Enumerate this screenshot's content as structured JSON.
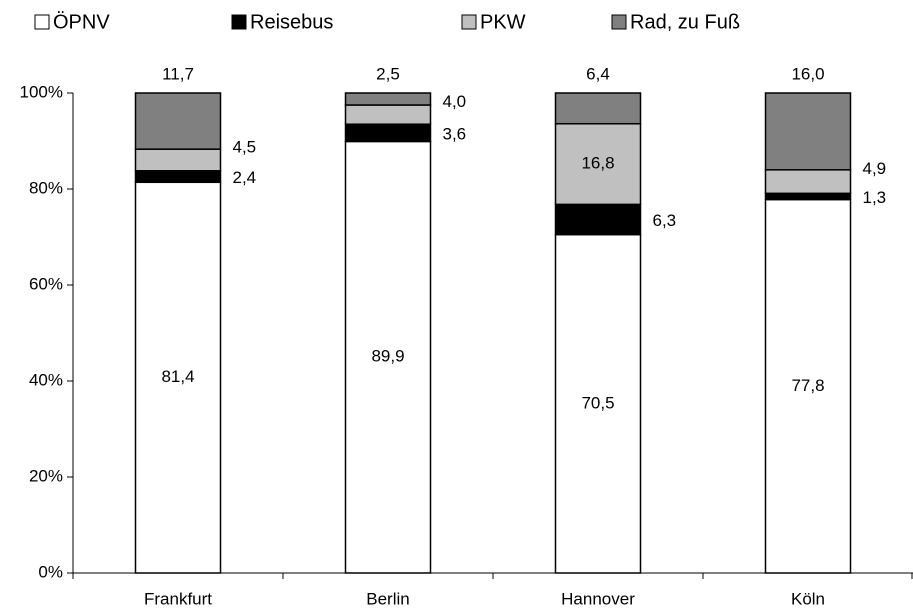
{
  "chart_data": {
    "type": "stacked_bar",
    "categories": [
      "Frankfurt",
      "Berlin",
      "Hannover",
      "Köln"
    ],
    "series": [
      {
        "name": "ÖPNV",
        "color": "#ffffff",
        "values": [
          81.4,
          89.9,
          70.5,
          77.8
        ],
        "value_labels": [
          "81,4",
          "89,9",
          "70,5",
          "77,8"
        ]
      },
      {
        "name": "Reisebus",
        "color": "#000000",
        "values": [
          2.4,
          3.6,
          6.3,
          1.3
        ],
        "value_labels": [
          "2,4",
          "3,6",
          "6,3",
          "1,3"
        ]
      },
      {
        "name": "PKW",
        "color": "#c0c0c0",
        "values": [
          4.5,
          4.0,
          16.8,
          4.9
        ],
        "value_labels": [
          "4,5",
          "4,0",
          "16,8",
          "4,9"
        ]
      },
      {
        "name": "Rad, zu Fuß",
        "color": "#808080",
        "values": [
          11.7,
          2.5,
          6.4,
          16.0
        ],
        "value_labels": [
          "11,7",
          "2,5",
          "6,4",
          "16,0"
        ]
      }
    ],
    "ylim": [
      0,
      100
    ],
    "yticks": [
      {
        "value": 0,
        "label": "0%"
      },
      {
        "value": 20,
        "label": "20%"
      },
      {
        "value": 40,
        "label": "40%"
      },
      {
        "value": 60,
        "label": "60%"
      },
      {
        "value": 80,
        "label": "80%"
      },
      {
        "value": 100,
        "label": "100%"
      }
    ],
    "legend": "top"
  }
}
